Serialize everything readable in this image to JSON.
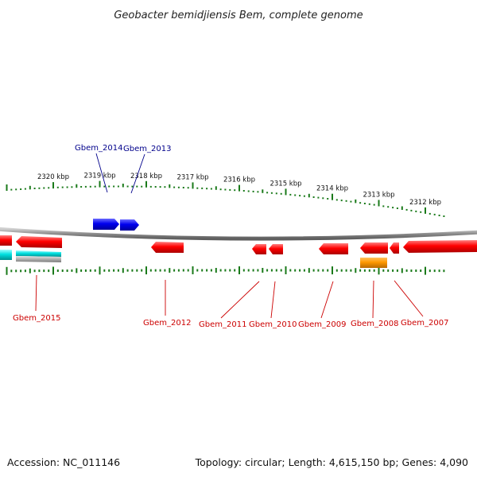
{
  "title": "Geobacter bemidjiensis Bem, complete genome",
  "footer": {
    "accession": "Accession: NC_011146",
    "summary": "Topology: circular; Length: 4,615,150 bp; Genes: 4,090"
  },
  "colors": {
    "tick_green": "#1a7a1a",
    "backbone": "#8c8c8c",
    "plus_strand_label": "#00008b",
    "minus_strand_label": "#cc0000",
    "red_gene": "#ff0000",
    "blue_gene": "#0000ee",
    "cyan_gene": "#00e0e0",
    "orange_gene": "#ff9900",
    "gray_gene": "#b0b0b0"
  },
  "scale": {
    "unit": "kbp",
    "ticks": [
      {
        "kbp": 2320,
        "label": "2320 kbp"
      },
      {
        "kbp": 2319,
        "label": "2319 kbp"
      },
      {
        "kbp": 2318,
        "label": "2318 kbp"
      },
      {
        "kbp": 2317,
        "label": "2317 kbp"
      },
      {
        "kbp": 2316,
        "label": "2316 kbp"
      },
      {
        "kbp": 2315,
        "label": "2315 kbp"
      },
      {
        "kbp": 2314,
        "label": "2314 kbp"
      },
      {
        "kbp": 2313,
        "label": "2313 kbp"
      },
      {
        "kbp": 2312,
        "label": "2312 kbp"
      }
    ]
  },
  "genes": [
    {
      "id": "Gbem_2014",
      "label": "Gbem_2014",
      "strand": "plus",
      "color": "blue"
    },
    {
      "id": "Gbem_2013",
      "label": "Gbem_2013",
      "strand": "plus",
      "color": "blue"
    },
    {
      "id": "Gbem_2015",
      "label": "Gbem_2015",
      "strand": "minus",
      "color": "red"
    },
    {
      "id": "Gbem_2012",
      "label": "Gbem_2012",
      "strand": "minus",
      "color": "red"
    },
    {
      "id": "Gbem_2011",
      "label": "Gbem_2011",
      "strand": "minus",
      "color": "red"
    },
    {
      "id": "Gbem_2010",
      "label": "Gbem_2010",
      "strand": "minus",
      "color": "red"
    },
    {
      "id": "Gbem_2009",
      "label": "Gbem_2009",
      "strand": "minus",
      "color": "red"
    },
    {
      "id": "Gbem_2008",
      "label": "Gbem_2008",
      "strand": "minus",
      "color": "red"
    },
    {
      "id": "Gbem_2007",
      "label": "Gbem_2007",
      "strand": "minus",
      "color": "red"
    }
  ]
}
